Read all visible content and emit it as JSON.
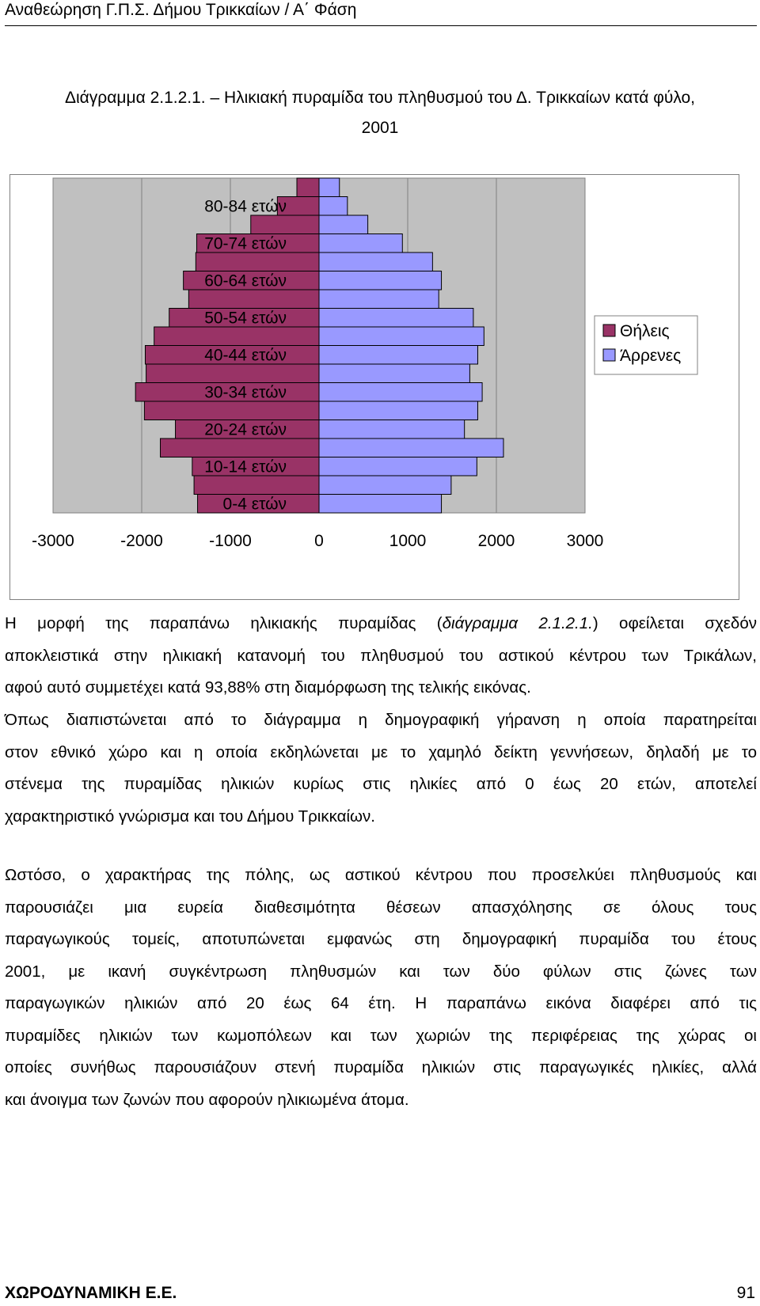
{
  "header": {
    "title": "Αναθεώρηση Γ.Π.Σ. Δήμου Τρικκαίων / Α΄ Φάση"
  },
  "figure": {
    "caption_line1": "Διάγραμμα 2.1.2.1. – Ηλικιακή πυραμίδα του πληθυσμού του Δ. Τρικκαίων κατά φύλο,",
    "caption_line2": "2001"
  },
  "chart_data": {
    "type": "bar",
    "orientation": "horizontal",
    "stacked_diverging": true,
    "categories": [
      "0-4 ετών",
      "5-9 ετών",
      "10-14 ετών",
      "15-19 ετών",
      "20-24 ετών",
      "25-29 ετών",
      "30-34 ετών",
      "35-39 ετών",
      "40-44 ετών",
      "45-49 ετών",
      "50-54 ετών",
      "55-59 ετών",
      "60-64 ετών",
      "65-69 ετών",
      "70-74 ετών",
      "75-79 ετών",
      "80-84 ετών",
      "85+ ετών"
    ],
    "visible_tick_labels": [
      "0-4 ετών",
      "10-14 ετών",
      "20-24 ετών",
      "30-34 ετών",
      "40-44 ετών",
      "50-54 ετών",
      "60-64 ετών",
      "70-74 ετών",
      "80-84 ετών"
    ],
    "series": [
      {
        "name": "Θήλεις",
        "color": "#993366",
        "values": [
          -1370,
          -1410,
          -1430,
          -1790,
          -1620,
          -1970,
          -2070,
          -1950,
          -1960,
          -1860,
          -1690,
          -1470,
          -1530,
          -1390,
          -1380,
          -770,
          -470,
          -250
        ]
      },
      {
        "name": "Άρρενες",
        "color": "#9999FF",
        "values": [
          1380,
          1490,
          1780,
          2080,
          1640,
          1790,
          1840,
          1700,
          1790,
          1860,
          1740,
          1350,
          1380,
          1280,
          940,
          550,
          320,
          230
        ]
      }
    ],
    "xlim": [
      -3000,
      3000
    ],
    "xticks": [
      "-3000",
      "-2000",
      "-1000",
      "0",
      "1000",
      "2000",
      "3000"
    ],
    "legend": "right",
    "grid": true
  },
  "body": {
    "p1": [
      [
        {
          "t": "Η μορφή της παραπάνω ηλικιακής πυραμίδας ("
        },
        {
          "t": "διάγραμμα 2.1.2.1.",
          "i": true
        },
        {
          "t": ") οφείλεται σχεδόν"
        }
      ],
      [
        {
          "t": "αποκλειστικά στην ηλικιακή κατανομή του πληθυσμού του αστικού κέντρου των Τρικάλων,"
        }
      ],
      [
        {
          "t": "αφού αυτό συμμετέχει κατά 93,88% στη διαμόρφωση της τελικής εικόνας."
        }
      ]
    ],
    "p2": [
      "Όπως διαπιστώνεται από το διάγραμμα η δημογραφική γήρανση η οποία παρατηρείται",
      "στον εθνικό χώρο και η οποία εκδηλώνεται με το χαμηλό δείκτη γεννήσεων, δηλαδή με το",
      "στένεμα της πυραμίδας ηλικιών κυρίως στις ηλικίες από 0 έως 20 ετών, αποτελεί",
      "χαρακτηριστικό γνώρισμα και του Δήμου Τρικκαίων."
    ],
    "p3": [
      "Ωστόσο, ο χαρακτήρας της πόλης, ως αστικού κέντρου που προσελκύει πληθυσμούς και",
      "παρουσιάζει μια ευρεία διαθεσιμότητα θέσεων απασχόλησης σε όλους τους",
      "παραγωγικούς τομείς, αποτυπώνεται εμφανώς στη δημογραφική πυραμίδα του έτους",
      "2001, με ικανή συγκέντρωση πληθυσμών και των δύο φύλων στις ζώνες των",
      "παραγωγικών ηλικιών από 20 έως 64 έτη. Η παραπάνω εικόνα διαφέρει από τις",
      "πυραμίδες ηλικιών των κωμοπόλεων και των χωριών της περιφέρειας της χώρας οι",
      "οποίες συνήθως παρουσιάζουν στενή πυραμίδα ηλικιών στις παραγωγικές ηλικίες, αλλά",
      "και άνοιγμα των ζωνών που αφορούν ηλικιωμένα άτομα."
    ]
  },
  "footer": {
    "left": "ΧΩΡΟΔΥΝΑΜΙΚΗ Ε.Ε.",
    "right": "91"
  }
}
